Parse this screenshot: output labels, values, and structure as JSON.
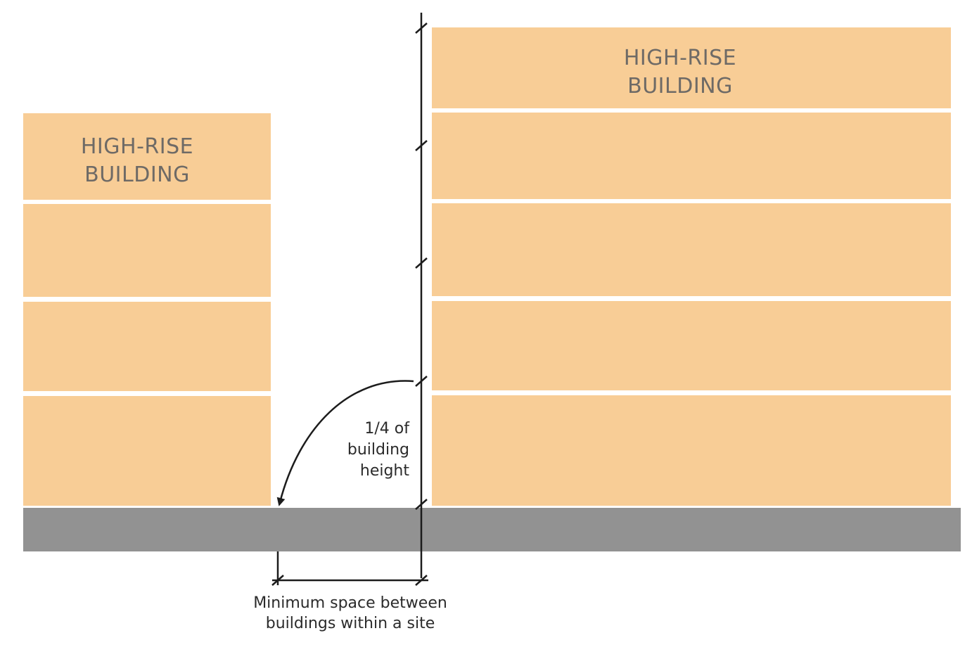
{
  "diagram": {
    "left_building": {
      "label_lines": [
        "HIGH-RISE",
        "BUILDING"
      ],
      "floor_count": 4
    },
    "right_building": {
      "label_lines": [
        "HIGH-RISE",
        "BUILDING"
      ],
      "floor_count": 5
    },
    "height_annotation": {
      "lines": [
        "1/4 of",
        "building",
        "height"
      ]
    },
    "spacing_annotation": {
      "lines": [
        "Minimum space between",
        "buildings within a site"
      ]
    },
    "colors": {
      "building": "#f8cd96",
      "ground": "#929292",
      "label_text": "#6e6a66",
      "line": "#1c1c1c"
    }
  }
}
